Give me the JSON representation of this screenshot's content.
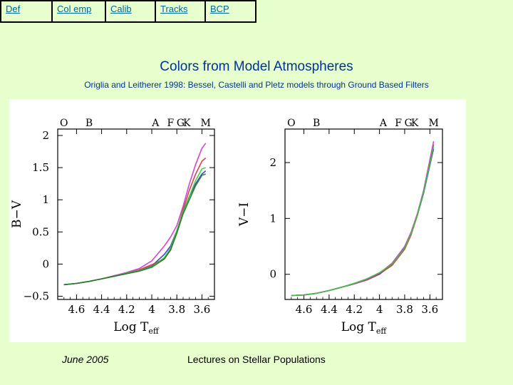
{
  "nav": {
    "tabs": [
      {
        "label": "Def"
      },
      {
        "label": "Col emp"
      },
      {
        "label": "Calib"
      },
      {
        "label": "Tracks"
      },
      {
        "label": "BCP"
      }
    ]
  },
  "title": "Colors from Model Atmospheres",
  "subtitle": "Origlia and Leitherer 1998: Bessel, Castelli and Pletz models through Ground Based Filters",
  "footer": {
    "date": "June 2005",
    "center": "Lectures on Stellar Populations"
  },
  "colors": {
    "background": "#e6ffcc",
    "text": "#003399",
    "link": "#006699"
  },
  "chart_data": [
    {
      "type": "line",
      "xlabel": "Log T",
      "xlabel_sub": "eff",
      "ylabel": "B−V",
      "xlim": [
        4.75,
        3.5
      ],
      "ylim": [
        -0.55,
        2.1
      ],
      "xticks": [
        "4.6",
        "4.4",
        "4.2",
        "4",
        "3.8",
        "3.6"
      ],
      "yticks": [
        "2",
        "1.5",
        "1",
        "0.5",
        "0",
        "−0.5"
      ],
      "spectral_types": [
        {
          "label": "O",
          "x": 4.7
        },
        {
          "label": "B",
          "x": 4.5
        },
        {
          "label": "A",
          "x": 3.97
        },
        {
          "label": "F",
          "x": 3.85
        },
        {
          "label": "G",
          "x": 3.77
        },
        {
          "label": "K",
          "x": 3.72
        },
        {
          "label": "M",
          "x": 3.57
        }
      ],
      "x": [
        4.7,
        4.6,
        4.5,
        4.4,
        4.3,
        4.2,
        4.1,
        4.0,
        3.9,
        3.85,
        3.8,
        3.75,
        3.7,
        3.65,
        3.6,
        3.57
      ],
      "series": [
        {
          "color": "#3333cc",
          "values": [
            -0.32,
            -0.3,
            -0.27,
            -0.23,
            -0.19,
            -0.15,
            -0.1,
            -0.03,
            0.15,
            0.28,
            0.52,
            0.82,
            1.05,
            1.25,
            1.4,
            1.45
          ]
        },
        {
          "color": "#cc3333",
          "values": [
            -0.32,
            -0.3,
            -0.27,
            -0.23,
            -0.19,
            -0.14,
            -0.09,
            -0.01,
            0.08,
            0.22,
            0.5,
            0.85,
            1.15,
            1.4,
            1.6,
            1.65
          ]
        },
        {
          "color": "#cc33cc",
          "values": [
            -0.32,
            -0.3,
            -0.27,
            -0.23,
            -0.18,
            -0.13,
            -0.07,
            0.05,
            0.28,
            0.42,
            0.6,
            0.9,
            1.25,
            1.55,
            1.8,
            1.88
          ]
        },
        {
          "color": "#33cc33",
          "values": [
            -0.32,
            -0.3,
            -0.27,
            -0.23,
            -0.19,
            -0.14,
            -0.1,
            -0.04,
            0.1,
            0.25,
            0.52,
            0.82,
            1.05,
            1.3,
            1.48,
            1.5
          ]
        },
        {
          "color": "#227722",
          "values": [
            -0.32,
            -0.3,
            -0.27,
            -0.23,
            -0.19,
            -0.15,
            -0.11,
            -0.05,
            0.08,
            0.22,
            0.48,
            0.78,
            1.0,
            1.22,
            1.38,
            1.4
          ]
        }
      ]
    },
    {
      "type": "line",
      "xlabel": "Log T",
      "xlabel_sub": "eff",
      "ylabel": "V−I",
      "xlim": [
        4.75,
        3.5
      ],
      "ylim": [
        -0.45,
        2.6
      ],
      "xticks": [
        "4.6",
        "4.4",
        "4.2",
        "4",
        "3.8",
        "3.6"
      ],
      "yticks": [
        "2",
        "1",
        "0"
      ],
      "spectral_types": [
        {
          "label": "O",
          "x": 4.7
        },
        {
          "label": "B",
          "x": 4.5
        },
        {
          "label": "A",
          "x": 3.97
        },
        {
          "label": "F",
          "x": 3.85
        },
        {
          "label": "G",
          "x": 3.77
        },
        {
          "label": "K",
          "x": 3.72
        },
        {
          "label": "M",
          "x": 3.57
        }
      ],
      "x": [
        4.7,
        4.6,
        4.5,
        4.4,
        4.3,
        4.2,
        4.1,
        4.0,
        3.9,
        3.8,
        3.75,
        3.7,
        3.65,
        3.6,
        3.57
      ],
      "series": [
        {
          "color": "#3333cc",
          "values": [
            -0.38,
            -0.37,
            -0.34,
            -0.29,
            -0.23,
            -0.17,
            -0.1,
            0.0,
            0.18,
            0.48,
            0.72,
            1.05,
            1.45,
            1.95,
            2.25
          ]
        },
        {
          "color": "#cc3333",
          "values": [
            -0.38,
            -0.37,
            -0.34,
            -0.29,
            -0.23,
            -0.17,
            -0.1,
            0.01,
            0.16,
            0.45,
            0.7,
            1.05,
            1.48,
            2.0,
            2.32
          ]
        },
        {
          "color": "#cc33cc",
          "values": [
            -0.38,
            -0.37,
            -0.34,
            -0.29,
            -0.23,
            -0.17,
            -0.09,
            0.02,
            0.2,
            0.5,
            0.75,
            1.08,
            1.5,
            2.05,
            2.38
          ]
        },
        {
          "color": "#33cc33",
          "values": [
            -0.38,
            -0.37,
            -0.34,
            -0.29,
            -0.23,
            -0.16,
            -0.08,
            0.03,
            0.18,
            0.47,
            0.72,
            1.06,
            1.47,
            1.98,
            2.3
          ]
        }
      ]
    }
  ]
}
